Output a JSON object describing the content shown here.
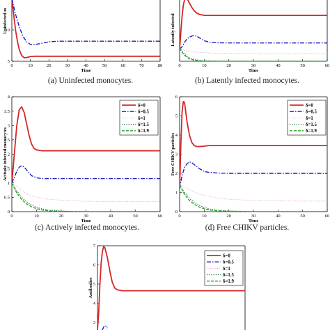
{
  "captions": {
    "a": "(a) Uninfected monocytes.",
    "b": "(b) Latently infected monocytes.",
    "c": "(c) Actively infected monocytes.",
    "d": "(d) Free CHIKV particles."
  },
  "colors": {
    "d0": "#d62728",
    "d05": "#1f1fbf",
    "d1": "#e2a3c4",
    "d15": "#1f7a3a",
    "d19": "#2ca02c",
    "axis": "#000000"
  },
  "chart_data": [
    {
      "id": "a",
      "type": "line",
      "xlabel": "Time",
      "ylabel": "Uninfected m",
      "xlim": [
        0,
        80
      ],
      "ylim": [
        5,
        15
      ],
      "xticks": [
        0,
        10,
        20,
        30,
        40,
        50,
        60,
        70,
        80
      ],
      "yticks": [
        5,
        10
      ],
      "legend": [],
      "series": [
        {
          "style": "d0",
          "x": [
            0,
            1,
            2,
            3,
            4,
            5,
            6,
            7,
            8,
            10,
            12,
            15,
            20,
            30,
            40,
            80
          ],
          "y": [
            15,
            12.5,
            10,
            8.2,
            6.9,
            6.1,
            5.7,
            5.55,
            5.6,
            5.75,
            5.8,
            5.8,
            5.8,
            5.8,
            5.8,
            5.8
          ]
        },
        {
          "style": "d05",
          "x": [
            0,
            2,
            4,
            6,
            8,
            10,
            12,
            15,
            20,
            25,
            30,
            40,
            80
          ],
          "y": [
            15,
            12.5,
            10.5,
            9,
            8.1,
            7.7,
            7.65,
            7.8,
            8.1,
            8.2,
            8.2,
            8.2,
            8.2
          ]
        }
      ]
    },
    {
      "id": "b",
      "type": "line",
      "xlabel": "Time",
      "ylabel": "Latently infected",
      "xlim": [
        0,
        60
      ],
      "ylim": [
        0,
        2.8
      ],
      "xticks": [
        0,
        10,
        20,
        30,
        40,
        50,
        60
      ],
      "yticks": [],
      "legend": [],
      "series": [
        {
          "style": "d0",
          "x": [
            0,
            0.5,
            1,
            1.5,
            2,
            2.5,
            3,
            4,
            5,
            6,
            7,
            8,
            10,
            12,
            15,
            20,
            30,
            60
          ],
          "y": [
            0.55,
            1.3,
            2.0,
            2.5,
            2.75,
            2.85,
            2.8,
            2.6,
            2.4,
            2.25,
            2.15,
            2.1,
            2.05,
            2.05,
            2.05,
            2.05,
            2.05,
            2.05
          ]
        },
        {
          "style": "d05",
          "x": [
            0,
            1,
            2,
            3,
            4,
            5,
            6,
            7,
            8,
            10,
            12,
            15,
            20,
            30,
            60
          ],
          "y": [
            0.55,
            0.65,
            0.85,
            1.0,
            1.08,
            1.13,
            1.15,
            1.12,
            1.05,
            0.92,
            0.85,
            0.83,
            0.82,
            0.82,
            0.82
          ]
        },
        {
          "style": "d1",
          "x": [
            0,
            2,
            5,
            10,
            15,
            20,
            30,
            60
          ],
          "y": [
            0.6,
            0.48,
            0.42,
            0.38,
            0.36,
            0.35,
            0.34,
            0.34
          ]
        },
        {
          "style": "d15",
          "x": [
            0,
            1,
            2,
            3,
            4,
            6,
            8,
            10,
            15,
            60
          ],
          "y": [
            0.6,
            0.45,
            0.33,
            0.23,
            0.15,
            0.08,
            0.04,
            0.02,
            0.005,
            0
          ]
        },
        {
          "style": "d19",
          "x": [
            0,
            1,
            2,
            3,
            4,
            6,
            8,
            10,
            15,
            60
          ],
          "y": [
            0.58,
            0.4,
            0.27,
            0.18,
            0.11,
            0.05,
            0.02,
            0.01,
            0,
            0
          ]
        }
      ]
    },
    {
      "id": "c",
      "type": "line",
      "xlabel": "Time",
      "ylabel": "Actively infected monocytes",
      "xlim": [
        0,
        60
      ],
      "ylim": [
        0,
        4
      ],
      "xticks": [
        0,
        10,
        20,
        30,
        40,
        50,
        60
      ],
      "yticks": [
        0,
        0.5,
        1,
        1.5,
        2,
        2.5,
        3,
        3.5,
        4
      ],
      "legend": [
        "δ=0",
        "δ=0.5",
        "δ=1",
        "δ=1.5",
        "δ=1.9"
      ],
      "series": [
        {
          "style": "d0",
          "x": [
            0,
            1,
            2,
            3,
            4,
            5,
            6,
            7,
            8,
            9,
            10,
            12,
            15,
            20,
            30,
            60
          ],
          "y": [
            1.0,
            2.0,
            3.0,
            3.55,
            3.65,
            3.45,
            3.05,
            2.65,
            2.35,
            2.2,
            2.15,
            2.12,
            2.12,
            2.12,
            2.12,
            2.12
          ]
        },
        {
          "style": "d05",
          "x": [
            0,
            1,
            2,
            3,
            4,
            5,
            6,
            7,
            8,
            10,
            12,
            14,
            16,
            20,
            30,
            60
          ],
          "y": [
            1.0,
            1.2,
            1.4,
            1.55,
            1.6,
            1.55,
            1.45,
            1.35,
            1.25,
            1.18,
            1.15,
            1.15,
            1.15,
            1.15,
            1.15,
            1.15
          ]
        },
        {
          "style": "d1",
          "x": [
            0,
            2,
            4,
            6,
            8,
            10,
            15,
            20,
            30,
            40,
            60
          ],
          "y": [
            1.0,
            0.9,
            0.75,
            0.62,
            0.55,
            0.5,
            0.43,
            0.4,
            0.36,
            0.35,
            0.35
          ]
        },
        {
          "style": "d15",
          "x": [
            0,
            2,
            4,
            6,
            8,
            10,
            12,
            15,
            20,
            30,
            60
          ],
          "y": [
            1.0,
            0.72,
            0.5,
            0.34,
            0.23,
            0.15,
            0.1,
            0.05,
            0.02,
            0,
            0
          ]
        },
        {
          "style": "d19",
          "x": [
            0,
            2,
            4,
            6,
            8,
            10,
            12,
            15,
            20,
            30,
            60
          ],
          "y": [
            1.0,
            0.65,
            0.42,
            0.27,
            0.17,
            0.1,
            0.06,
            0.03,
            0.01,
            0,
            0
          ]
        }
      ]
    },
    {
      "id": "d",
      "type": "line",
      "xlabel": "Time",
      "ylabel": "Free CHIKV particles",
      "xlim": [
        0,
        60
      ],
      "ylim": [
        0,
        6
      ],
      "xticks": [
        0,
        10,
        20,
        30,
        40,
        50,
        60
      ],
      "yticks": [
        0,
        1,
        2,
        3,
        4,
        5,
        6
      ],
      "legend": [
        "δ=0",
        "δ=0.5",
        "δ=1",
        "δ=1.5",
        "δ=1.9"
      ],
      "series": [
        {
          "style": "d0",
          "x": [
            0,
            0.5,
            1,
            1.5,
            2,
            2.5,
            3,
            4,
            5,
            6,
            7,
            8,
            10,
            12,
            15,
            20,
            30,
            60
          ],
          "y": [
            1.2,
            3.5,
            5.2,
            5.75,
            5.7,
            5.2,
            4.7,
            4.0,
            3.6,
            3.45,
            3.4,
            3.4,
            3.42,
            3.45,
            3.45,
            3.45,
            3.45,
            3.45
          ]
        },
        {
          "style": "d05",
          "x": [
            0,
            1,
            2,
            3,
            4,
            5,
            6,
            8,
            10,
            12,
            15,
            20,
            30,
            60
          ],
          "y": [
            1.2,
            1.9,
            2.3,
            2.5,
            2.6,
            2.55,
            2.45,
            2.25,
            2.1,
            2.05,
            2.02,
            2.0,
            2.0,
            2.0
          ]
        },
        {
          "style": "d1",
          "x": [
            0,
            2,
            4,
            6,
            8,
            10,
            15,
            20,
            30,
            40,
            60
          ],
          "y": [
            1.4,
            1.3,
            1.15,
            1.02,
            0.92,
            0.85,
            0.72,
            0.65,
            0.58,
            0.56,
            0.55
          ]
        },
        {
          "style": "d15",
          "x": [
            0,
            2,
            4,
            6,
            8,
            10,
            12,
            15,
            20,
            30,
            60
          ],
          "y": [
            1.4,
            1.0,
            0.7,
            0.48,
            0.32,
            0.22,
            0.14,
            0.08,
            0.03,
            0,
            0
          ]
        },
        {
          "style": "d19",
          "x": [
            0,
            2,
            4,
            6,
            8,
            10,
            12,
            15,
            20,
            30,
            60
          ],
          "y": [
            1.4,
            0.9,
            0.58,
            0.38,
            0.24,
            0.15,
            0.09,
            0.05,
            0.02,
            0,
            0
          ]
        }
      ]
    },
    {
      "id": "e",
      "type": "line",
      "xlabel": "",
      "ylabel": "Antibodies",
      "xlim": [
        0,
        60
      ],
      "ylim": [
        2.6,
        7
      ],
      "xticks": [],
      "yticks": [
        3,
        4,
        5,
        6,
        7
      ],
      "legend": [
        "δ=0",
        "δ=0.5",
        "δ=1",
        "δ=1.5",
        "δ=1.9"
      ],
      "series": [
        {
          "style": "d0",
          "x": [
            0,
            0.5,
            1,
            1.5,
            2,
            2.5,
            3,
            4,
            5,
            6,
            7,
            8,
            10,
            12,
            15,
            20,
            30,
            60
          ],
          "y": [
            2.6,
            3.5,
            5.0,
            6.1,
            6.7,
            6.95,
            6.9,
            6.4,
            5.7,
            5.1,
            4.8,
            4.7,
            4.65,
            4.65,
            4.65,
            4.65,
            4.65,
            4.65
          ]
        },
        {
          "style": "d05",
          "x": [
            2,
            2.5,
            3,
            3.5,
            4
          ],
          "y": [
            2.6,
            2.75,
            2.82,
            2.8,
            2.7
          ]
        }
      ]
    }
  ]
}
